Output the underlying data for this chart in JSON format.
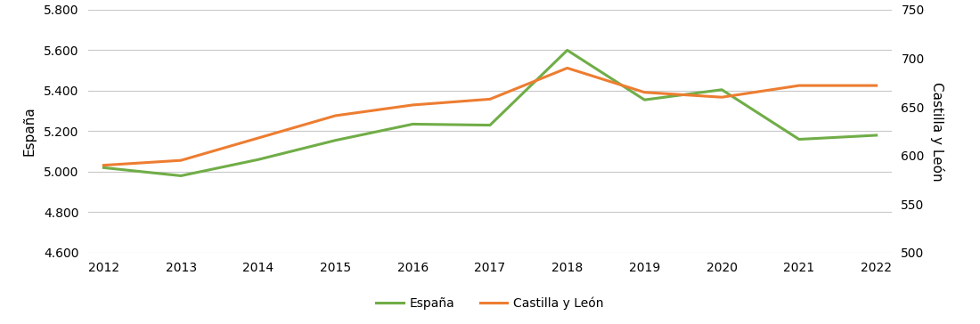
{
  "years": [
    2012,
    2013,
    2014,
    2015,
    2016,
    2017,
    2018,
    2019,
    2020,
    2021,
    2022
  ],
  "espana": [
    5020,
    4980,
    5060,
    5155,
    5235,
    5230,
    5600,
    5355,
    5405,
    5160,
    5180
  ],
  "castilla": [
    590,
    595,
    618,
    641,
    652,
    658,
    690,
    665,
    660,
    672,
    672
  ],
  "espana_color": "#70AD47",
  "castilla_color": "#ED7D31",
  "ylim_left": [
    4600,
    5800
  ],
  "ylim_right": [
    500,
    750
  ],
  "yticks_left": [
    4600,
    4800,
    5000,
    5200,
    5400,
    5600,
    5800
  ],
  "yticks_right": [
    500,
    550,
    600,
    650,
    700,
    750
  ],
  "ylabel_left": "España",
  "ylabel_right": "Castilla y León",
  "legend_espana": "España",
  "legend_castilla": "Castilla y León",
  "line_width": 2.2,
  "background_color": "#ffffff",
  "grid_color": "#c8c8c8",
  "tick_fontsize": 10,
  "label_fontsize": 11
}
